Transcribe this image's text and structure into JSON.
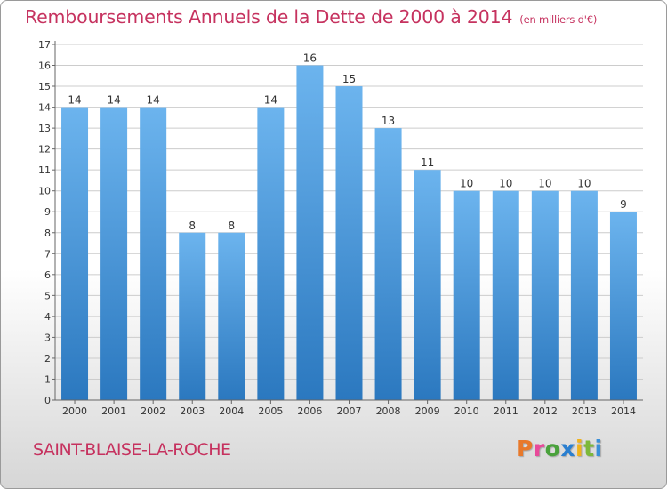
{
  "title": "Remboursements Annuels de la Dette de 2000 à 2014",
  "unit": "(en milliers d'€)",
  "commune": "SAINT-BLAISE-LA-ROCHE",
  "logo": {
    "text": "Proxiti",
    "colors": [
      "#e8792b",
      "#e84a9a",
      "#4aa23c",
      "#2a7fd0",
      "#f0b21c",
      "#7cb83a",
      "#3a8fd8"
    ]
  },
  "colors": {
    "bar_top": "#6cb4ee",
    "bar_bottom": "#2b78bf",
    "title": "#c6325f",
    "grid": "#cccccc"
  },
  "chart_data": {
    "type": "bar",
    "title": "Remboursements Annuels de la Dette de 2000 à 2014",
    "xlabel": "",
    "ylabel": "",
    "categories": [
      "2000",
      "2001",
      "2002",
      "2003",
      "2004",
      "2005",
      "2006",
      "2007",
      "2008",
      "2009",
      "2010",
      "2011",
      "2012",
      "2013",
      "2014"
    ],
    "values": [
      14,
      14,
      14,
      8,
      8,
      14,
      16,
      15,
      13,
      11,
      10,
      10,
      10,
      10,
      9
    ],
    "ylim": [
      0,
      17
    ],
    "yticks": [
      0,
      1,
      2,
      3,
      4,
      5,
      6,
      7,
      8,
      9,
      10,
      11,
      12,
      13,
      14,
      15,
      16,
      17
    ],
    "grid": true,
    "data_labels": true
  }
}
